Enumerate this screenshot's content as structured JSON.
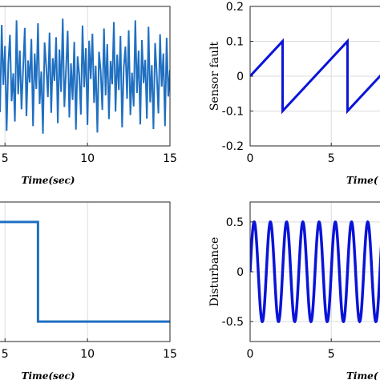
{
  "chart_data": [
    {
      "type": "line",
      "xlabel": "Time(sec)",
      "ylabel": "",
      "xlim": [
        4.6,
        15
      ],
      "ylim": [
        -1.2,
        1.2
      ],
      "xticks": [
        5,
        10,
        15
      ],
      "xtick_labels": [
        "5",
        "10",
        "15"
      ],
      "yticks": [],
      "ytick_labels": [],
      "grid": true,
      "color": "#1f6fc1",
      "signal": "random noise",
      "series": [
        {
          "x": [
            4.6,
            4.7,
            4.8,
            4.9,
            5.0,
            5.1,
            5.2,
            5.3,
            5.4,
            5.5,
            5.6,
            5.7,
            5.8,
            5.9,
            6.0,
            6.1,
            6.2,
            6.3,
            6.4,
            6.5,
            6.6,
            6.7,
            6.8,
            6.9,
            7.0,
            7.1,
            7.2,
            7.3,
            7.4,
            7.5,
            7.6,
            7.7,
            7.8,
            7.9,
            8.0,
            8.1,
            8.2,
            8.3,
            8.4,
            8.5,
            8.6,
            8.7,
            8.8,
            8.9,
            9.0,
            9.1,
            9.2,
            9.3,
            9.4,
            9.5,
            9.6,
            9.7,
            9.8,
            9.9,
            10.0,
            10.1,
            10.2,
            10.3,
            10.4,
            10.5,
            10.6,
            10.7,
            10.8,
            10.9,
            11.0,
            11.1,
            11.2,
            11.3,
            11.4,
            11.5,
            11.6,
            11.7,
            11.8,
            11.9,
            12.0,
            12.1,
            12.2,
            12.3,
            12.4,
            12.5,
            12.6,
            12.7,
            12.8,
            12.9,
            13.0,
            13.1,
            13.2,
            13.3,
            13.4,
            13.5,
            13.6,
            13.7,
            13.8,
            13.9,
            14.0,
            14.1,
            14.2,
            14.3,
            14.4,
            14.5,
            14.6,
            14.7,
            14.8,
            14.9,
            15.0
          ],
          "y": [
            0.35,
            -0.62,
            0.88,
            -0.15,
            0.52,
            -0.94,
            0.21,
            0.71,
            -0.43,
            0.05,
            -0.78,
            0.96,
            -0.31,
            0.44,
            -0.57,
            0.13,
            0.83,
            -0.69,
            0.27,
            -0.11,
            0.64,
            -0.86,
            0.39,
            -0.22,
            0.91,
            -0.48,
            0.08,
            -0.99,
            0.58,
            0.17,
            -0.36,
            0.75,
            -0.63,
            0.31,
            -0.08,
            0.67,
            -0.81,
            0.46,
            -0.27,
            0.99,
            -0.53,
            0.12,
            0.78,
            -0.71,
            0.22,
            -0.41,
            0.59,
            -0.92,
            0.34,
            0.03,
            -0.66,
            0.87,
            -0.19,
            0.48,
            -0.84,
            0.61,
            -0.05,
            0.73,
            -0.46,
            0.18,
            -0.97,
            0.42,
            0.09,
            -0.58,
            0.82,
            -0.33,
            0.55,
            -0.74,
            0.26,
            -0.14,
            0.93,
            -0.61,
            0.37,
            -0.24,
            0.69,
            -0.88,
            0.15,
            0.51,
            -0.39,
            0.79,
            -0.67,
            0.06,
            -0.52,
            0.96,
            -0.29,
            0.44,
            -0.83,
            0.62,
            -0.12,
            0.28,
            -0.73,
            0.85,
            -0.45,
            0.19,
            -0.91,
            0.57,
            0.04,
            -0.64,
            0.72,
            -0.18,
            0.39,
            -0.86,
            0.66,
            -0.35,
            0.11
          ]
        }
      ]
    },
    {
      "type": "line",
      "xlabel": "Time(",
      "ylabel": "Sensor fault",
      "xlim": [
        0,
        8.3
      ],
      "ylim": [
        -0.2,
        0.2
      ],
      "xticks": [
        0,
        5
      ],
      "xtick_labels": [
        "0",
        "5"
      ],
      "yticks": [
        -0.2,
        -0.1,
        0,
        0.1,
        0.2
      ],
      "ytick_labels": [
        "-0.2",
        "-0.1",
        "0",
        "0.1",
        "0.2"
      ],
      "grid": true,
      "color": "#0a14d8",
      "series": [
        {
          "x": [
            0,
            2,
            2,
            6,
            6,
            8.3
          ],
          "y": [
            0,
            0.1,
            -0.1,
            0.1,
            -0.1,
            0.015
          ]
        }
      ]
    },
    {
      "type": "line",
      "xlabel": "Time(sec)",
      "ylabel": "",
      "xlim": [
        4.6,
        15
      ],
      "ylim": [
        -0.2,
        1.2
      ],
      "xticks": [
        5,
        10,
        15
      ],
      "xtick_labels": [
        "5",
        "10",
        "15"
      ],
      "yticks": [],
      "ytick_labels": [],
      "grid": true,
      "color": "#1f6fc1",
      "series": [
        {
          "x": [
            4.6,
            7,
            7,
            15
          ],
          "y": [
            1,
            1,
            0,
            0
          ]
        }
      ]
    },
    {
      "type": "line",
      "xlabel": "Time(",
      "ylabel": "Disturbance",
      "xlim": [
        0,
        8.3
      ],
      "ylim": [
        -0.7,
        0.7
      ],
      "xticks": [
        0,
        5
      ],
      "xtick_labels": [
        "0",
        "5"
      ],
      "yticks": [
        -0.5,
        0,
        0.5
      ],
      "ytick_labels": [
        "-0.5",
        "0",
        "0.5"
      ],
      "grid": true,
      "color": "#0a14d8",
      "signal": "0.5 sin(2πt)",
      "series": [
        {
          "amplitude": 0.5,
          "frequency": 1,
          "x_start": 0,
          "x_end": 8.3
        }
      ]
    }
  ]
}
